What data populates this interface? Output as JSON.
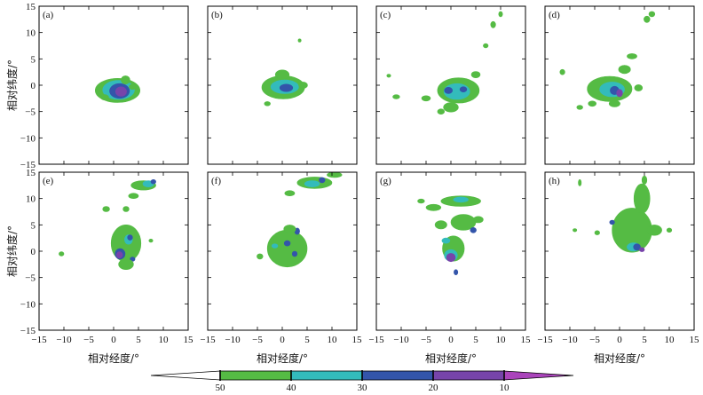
{
  "chart_data": {
    "type": "heatmap",
    "xlabel": "相对经度/°",
    "ylabel": "相对纬度/°",
    "xlim": [
      -15,
      15
    ],
    "ylim": [
      -15,
      15
    ],
    "xticks": [
      "−15",
      "−10",
      "−5",
      "0",
      "5",
      "10",
      "15"
    ],
    "yticks": [
      "15",
      "10",
      "5",
      "0",
      "−5",
      "−10",
      "−15"
    ],
    "grid": false,
    "colorbar": {
      "orientation": "horizontal",
      "extend": "both",
      "labels": [
        "50",
        "40",
        "30",
        "20",
        "10"
      ],
      "colors": [
        "#ffffff",
        "#55bb44",
        "#33bbbb",
        "#3355aa",
        "#7744aa",
        "#aa44bb"
      ]
    },
    "panels": [
      {
        "label": "(a)",
        "blobs": [
          {
            "x": 0.8,
            "y": -1,
            "rx": 4.5,
            "ry": 2.3,
            "level": 1
          },
          {
            "x": 1,
            "y": -0.9,
            "rx": 3.2,
            "ry": 1.8,
            "level": 2
          },
          {
            "x": 1.2,
            "y": -1.1,
            "rx": 2,
            "ry": 1.4,
            "level": 3
          },
          {
            "x": 1.5,
            "y": -1.2,
            "rx": 1.1,
            "ry": 0.9,
            "level": 4
          },
          {
            "x": 2.4,
            "y": 1,
            "rx": 0.9,
            "ry": 0.8,
            "level": 1
          },
          {
            "x": -1.8,
            "y": -2.3,
            "rx": 0.8,
            "ry": 0.5,
            "level": 1
          },
          {
            "x": 3.8,
            "y": -0.3,
            "rx": 0.7,
            "ry": 0.5,
            "level": 1
          }
        ]
      },
      {
        "label": "(b)",
        "blobs": [
          {
            "x": 0.2,
            "y": -0.4,
            "rx": 4.3,
            "ry": 2.2,
            "level": 1
          },
          {
            "x": 0.5,
            "y": -0.3,
            "rx": 2.8,
            "ry": 1.3,
            "level": 2
          },
          {
            "x": 0.8,
            "y": -0.5,
            "rx": 1.3,
            "ry": 0.7,
            "level": 3
          },
          {
            "x": 0,
            "y": 2,
            "rx": 1.4,
            "ry": 0.9,
            "level": 1
          },
          {
            "x": -3,
            "y": -3.5,
            "rx": 0.6,
            "ry": 0.4,
            "level": 1
          },
          {
            "x": 4.2,
            "y": 0,
            "rx": 0.9,
            "ry": 0.6,
            "level": 1
          },
          {
            "x": 3.5,
            "y": 8.5,
            "rx": 0.3,
            "ry": 0.3,
            "level": 1
          }
        ]
      },
      {
        "label": "(c)",
        "blobs": [
          {
            "x": 1.5,
            "y": -1,
            "rx": 4.2,
            "ry": 2.4,
            "level": 1
          },
          {
            "x": 1.2,
            "y": -1.2,
            "rx": 2.6,
            "ry": 1.5,
            "level": 2
          },
          {
            "x": -0.5,
            "y": -1,
            "rx": 0.8,
            "ry": 0.6,
            "level": 3
          },
          {
            "x": 2.5,
            "y": -0.8,
            "rx": 0.7,
            "ry": 0.5,
            "level": 3
          },
          {
            "x": 0,
            "y": -4.2,
            "rx": 1.5,
            "ry": 0.9,
            "level": 1
          },
          {
            "x": -2,
            "y": -5,
            "rx": 0.7,
            "ry": 0.5,
            "level": 1
          },
          {
            "x": -5,
            "y": -2.5,
            "rx": 0.9,
            "ry": 0.5,
            "level": 1
          },
          {
            "x": -11,
            "y": -2.2,
            "rx": 0.7,
            "ry": 0.4,
            "level": 1
          },
          {
            "x": 8.5,
            "y": 11.5,
            "rx": 0.5,
            "ry": 0.6,
            "level": 1
          },
          {
            "x": 7,
            "y": 7.5,
            "rx": 0.5,
            "ry": 0.4,
            "level": 1
          },
          {
            "x": 5,
            "y": 2,
            "rx": 0.9,
            "ry": 0.6,
            "level": 1
          },
          {
            "x": -12.5,
            "y": 1.8,
            "rx": 0.4,
            "ry": 0.3,
            "level": 1
          },
          {
            "x": 10,
            "y": 13.5,
            "rx": 0.4,
            "ry": 0.5,
            "level": 1
          }
        ]
      },
      {
        "label": "(d)",
        "blobs": [
          {
            "x": -2,
            "y": -0.7,
            "rx": 4.5,
            "ry": 2.4,
            "level": 1
          },
          {
            "x": -1.5,
            "y": -0.8,
            "rx": 2.5,
            "ry": 1.4,
            "level": 2
          },
          {
            "x": -1,
            "y": -1,
            "rx": 0.9,
            "ry": 0.8,
            "level": 3
          },
          {
            "x": 0,
            "y": -1.5,
            "rx": 0.6,
            "ry": 0.7,
            "level": 4
          },
          {
            "x": -5.5,
            "y": -3.5,
            "rx": 0.8,
            "ry": 0.5,
            "level": 1
          },
          {
            "x": -1,
            "y": -3.5,
            "rx": 1.1,
            "ry": 0.6,
            "level": 1
          },
          {
            "x": -8,
            "y": -4.2,
            "rx": 0.6,
            "ry": 0.4,
            "level": 1
          },
          {
            "x": 1,
            "y": 3,
            "rx": 1.2,
            "ry": 0.8,
            "level": 1
          },
          {
            "x": 2.5,
            "y": 5.5,
            "rx": 1,
            "ry": 0.5,
            "level": 1
          },
          {
            "x": 5.5,
            "y": 12.5,
            "rx": 0.6,
            "ry": 0.6,
            "level": 1
          },
          {
            "x": 6.5,
            "y": 13.5,
            "rx": 0.6,
            "ry": 0.5,
            "level": 1
          },
          {
            "x": -11.5,
            "y": 2.5,
            "rx": 0.5,
            "ry": 0.5,
            "level": 1
          },
          {
            "x": 3.8,
            "y": -0.5,
            "rx": 0.8,
            "ry": 0.6,
            "level": 1
          }
        ]
      },
      {
        "label": "(e)",
        "blobs": [
          {
            "x": 2.5,
            "y": 1.5,
            "rx": 3,
            "ry": 3.5,
            "level": 1
          },
          {
            "x": 3,
            "y": 2.2,
            "rx": 0.8,
            "ry": 0.9,
            "level": 2
          },
          {
            "x": 3.3,
            "y": 2.6,
            "rx": 0.5,
            "ry": 0.5,
            "level": 3
          },
          {
            "x": 1.3,
            "y": -0.5,
            "rx": 1,
            "ry": 1,
            "level": 3
          },
          {
            "x": 1.2,
            "y": -0.7,
            "rx": 0.6,
            "ry": 0.6,
            "level": 4
          },
          {
            "x": 3.8,
            "y": -1.5,
            "rx": 0.5,
            "ry": 0.4,
            "level": 3
          },
          {
            "x": 2.5,
            "y": -2.5,
            "rx": 1.5,
            "ry": 1,
            "level": 1
          },
          {
            "x": 6,
            "y": 12.5,
            "rx": 2.5,
            "ry": 0.9,
            "level": 1
          },
          {
            "x": 7,
            "y": 12.8,
            "rx": 1.1,
            "ry": 0.6,
            "level": 2
          },
          {
            "x": 8,
            "y": 13.2,
            "rx": 0.5,
            "ry": 0.4,
            "level": 3
          },
          {
            "x": 4,
            "y": 10.5,
            "rx": 1,
            "ry": 0.5,
            "level": 1
          },
          {
            "x": -1.5,
            "y": 8,
            "rx": 0.7,
            "ry": 0.5,
            "level": 1
          },
          {
            "x": 2.5,
            "y": 8,
            "rx": 0.6,
            "ry": 0.5,
            "level": 1
          },
          {
            "x": -10.5,
            "y": -0.5,
            "rx": 0.5,
            "ry": 0.4,
            "level": 1
          },
          {
            "x": 7.5,
            "y": 2,
            "rx": 0.4,
            "ry": 0.3,
            "level": 1
          }
        ]
      },
      {
        "label": "(f)",
        "blobs": [
          {
            "x": 1,
            "y": 0.5,
            "rx": 4,
            "ry": 3.5,
            "level": 1
          },
          {
            "x": 1,
            "y": 1.5,
            "rx": 0.6,
            "ry": 0.5,
            "level": 3
          },
          {
            "x": 3,
            "y": 3.8,
            "rx": 0.5,
            "ry": 0.6,
            "level": 3
          },
          {
            "x": 2.5,
            "y": -0.5,
            "rx": 0.5,
            "ry": 0.5,
            "level": 3
          },
          {
            "x": -1.5,
            "y": 1,
            "rx": 0.6,
            "ry": 0.4,
            "level": 2
          },
          {
            "x": 1.5,
            "y": 4.2,
            "rx": 1.2,
            "ry": 0.8,
            "level": 1
          },
          {
            "x": -4.5,
            "y": -1,
            "rx": 0.6,
            "ry": 0.5,
            "level": 1
          },
          {
            "x": 6.5,
            "y": 13,
            "rx": 3.5,
            "ry": 1.1,
            "level": 1
          },
          {
            "x": 6,
            "y": 12.8,
            "rx": 1.5,
            "ry": 0.6,
            "level": 2
          },
          {
            "x": 8,
            "y": 13.5,
            "rx": 0.6,
            "ry": 0.5,
            "level": 3
          },
          {
            "x": 10.5,
            "y": 14.5,
            "rx": 1.5,
            "ry": 0.5,
            "level": 1
          },
          {
            "x": 1.5,
            "y": 11,
            "rx": 1,
            "ry": 0.5,
            "level": 1
          },
          {
            "x": -1.5,
            "y": 2.5,
            "rx": 0.5,
            "ry": 0.3,
            "level": 1
          }
        ]
      },
      {
        "label": "(g)",
        "blobs": [
          {
            "x": 2,
            "y": 9.5,
            "rx": 4,
            "ry": 1,
            "level": 1
          },
          {
            "x": 2,
            "y": 9.8,
            "rx": 1.5,
            "ry": 0.5,
            "level": 2
          },
          {
            "x": -3.5,
            "y": 8.3,
            "rx": 1.5,
            "ry": 0.6,
            "level": 1
          },
          {
            "x": -6,
            "y": 9.5,
            "rx": 0.7,
            "ry": 0.4,
            "level": 1
          },
          {
            "x": 2.5,
            "y": 5.5,
            "rx": 2.5,
            "ry": 1.5,
            "level": 1
          },
          {
            "x": -2,
            "y": 5,
            "rx": 1.2,
            "ry": 0.8,
            "level": 1
          },
          {
            "x": 0.5,
            "y": 0.5,
            "rx": 2.2,
            "ry": 2.4,
            "level": 1
          },
          {
            "x": 0,
            "y": -0.8,
            "rx": 1.3,
            "ry": 1.1,
            "level": 2
          },
          {
            "x": 0,
            "y": -1.2,
            "rx": 0.9,
            "ry": 0.8,
            "level": 4
          },
          {
            "x": 1,
            "y": -4,
            "rx": 0.4,
            "ry": 0.5,
            "level": 3
          },
          {
            "x": 4.5,
            "y": 4,
            "rx": 0.6,
            "ry": 0.5,
            "level": 3
          },
          {
            "x": 5.5,
            "y": 6,
            "rx": 1,
            "ry": 0.6,
            "level": 1
          },
          {
            "x": -1,
            "y": 2,
            "rx": 0.8,
            "ry": 0.5,
            "level": 2
          }
        ]
      },
      {
        "label": "(h)",
        "blobs": [
          {
            "x": 2.5,
            "y": 4,
            "rx": 4,
            "ry": 4.2,
            "level": 1
          },
          {
            "x": 4.5,
            "y": 10,
            "rx": 1.6,
            "ry": 2.8,
            "level": 1
          },
          {
            "x": 5,
            "y": 13.5,
            "rx": 0.5,
            "ry": 0.8,
            "level": 1
          },
          {
            "x": 2.8,
            "y": 0.8,
            "rx": 1.3,
            "ry": 0.8,
            "level": 2
          },
          {
            "x": 3.5,
            "y": 0.8,
            "rx": 0.7,
            "ry": 0.6,
            "level": 3
          },
          {
            "x": 4.5,
            "y": 0.3,
            "rx": 0.5,
            "ry": 0.4,
            "level": 4
          },
          {
            "x": -1.5,
            "y": 5.5,
            "rx": 0.5,
            "ry": 0.4,
            "level": 3
          },
          {
            "x": -4.5,
            "y": 3.5,
            "rx": 0.5,
            "ry": 0.4,
            "level": 1
          },
          {
            "x": 7,
            "y": 4,
            "rx": 1.5,
            "ry": 1,
            "level": 1
          },
          {
            "x": -8,
            "y": 13,
            "rx": 0.3,
            "ry": 0.6,
            "level": 1
          },
          {
            "x": -9,
            "y": 4,
            "rx": 0.4,
            "ry": 0.3,
            "level": 1
          },
          {
            "x": 10,
            "y": 4,
            "rx": 0.5,
            "ry": 0.4,
            "level": 1
          }
        ]
      }
    ]
  }
}
